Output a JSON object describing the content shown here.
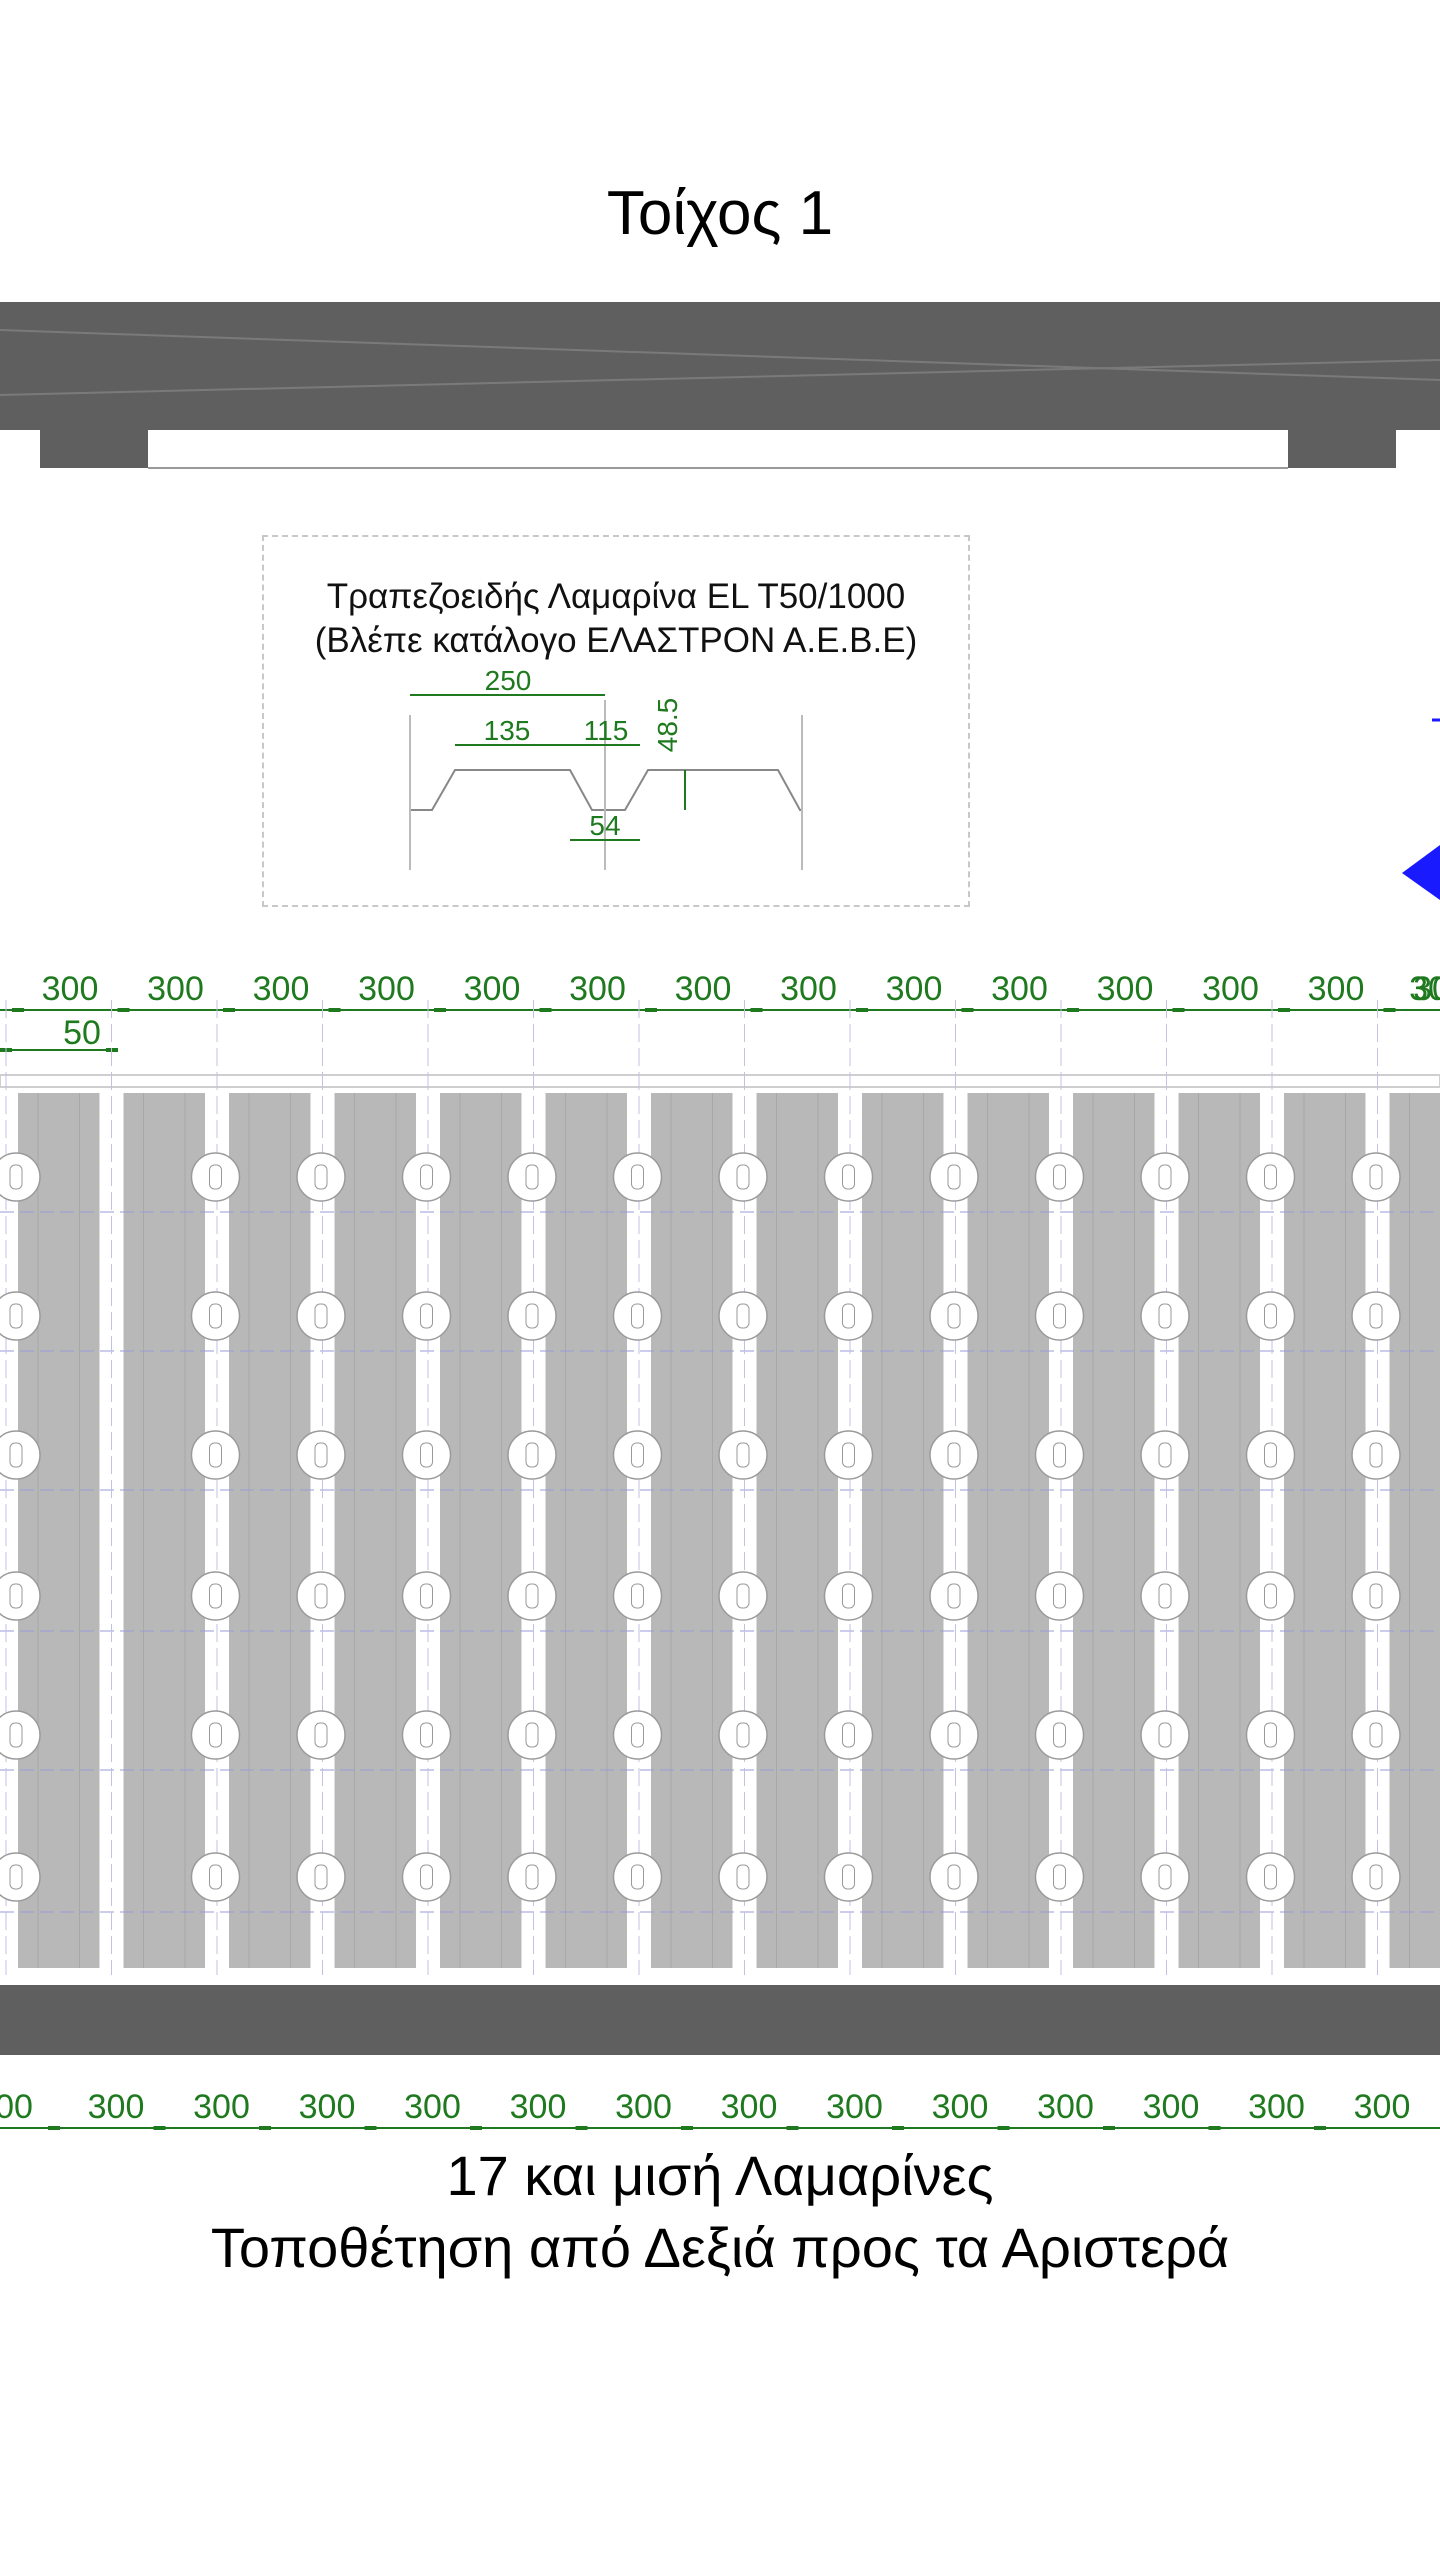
{
  "wall_title": "Τοίχος 1",
  "profile_box": {
    "name": "Τραπεζοειδής Λαμαρίνα EL T50/1000",
    "note": "(Βλέπε κατάλογο ΕΛΑΣΤΡΟΝ Α.Ε.Β.Ε)",
    "dims": {
      "pitch": "250",
      "top_flange": "135",
      "web": "115",
      "height": "48.5",
      "bottom_flange": "54"
    }
  },
  "top_dimension": {
    "spacing_label": "300",
    "count": 14,
    "last_partial": "30",
    "offset_label": "50"
  },
  "bottom_dimension": {
    "first_partial": "00",
    "spacing_label": "300",
    "count": 13
  },
  "caption": {
    "line1": "17 και μισή Λαμαρίνες",
    "line2": "Τοποθέτηση από Δεξιά προς τα Αριστερά"
  },
  "colors": {
    "dimension": "#1f7a1f",
    "beam": "#5f5f5f",
    "sheet": "#b8b8b8",
    "arrow": "#1a1aff"
  }
}
